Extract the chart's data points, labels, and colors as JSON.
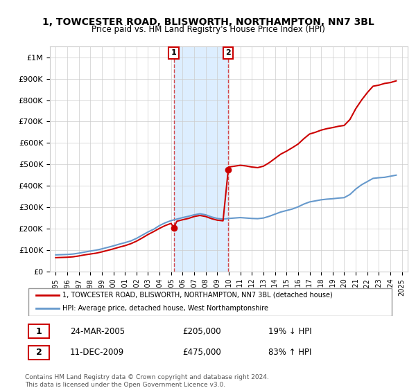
{
  "title": "1, TOWCESTER ROAD, BLISWORTH, NORTHAMPTON, NN7 3BL",
  "subtitle": "Price paid vs. HM Land Registry's House Price Index (HPI)",
  "legend_line1": "1, TOWCESTER ROAD, BLISWORTH, NORTHAMPTON, NN7 3BL (detached house)",
  "legend_line2": "HPI: Average price, detached house, West Northamptonshire",
  "footer": "Contains HM Land Registry data © Crown copyright and database right 2024.\nThis data is licensed under the Open Government Licence v3.0.",
  "sale1_label": "1",
  "sale1_date": "24-MAR-2005",
  "sale1_price": "£205,000",
  "sale1_hpi": "19% ↓ HPI",
  "sale2_label": "2",
  "sale2_date": "11-DEC-2009",
  "sale2_price": "£475,000",
  "sale2_hpi": "83% ↑ HPI",
  "red_color": "#cc0000",
  "blue_color": "#6699cc",
  "highlight_color": "#ddeeff",
  "sale1_x": 2005.23,
  "sale2_x": 2009.95,
  "sale1_y": 205000,
  "sale2_y": 475000,
  "ylim_max": 1050000,
  "xlim_min": 1994.5,
  "xlim_max": 2025.5,
  "yticks": [
    0,
    100000,
    200000,
    300000,
    400000,
    500000,
    600000,
    700000,
    800000,
    900000,
    1000000
  ],
  "ytick_labels": [
    "£0",
    "£100K",
    "£200K",
    "£300K",
    "£400K",
    "£500K",
    "£600K",
    "£700K",
    "£800K",
    "£900K",
    "£1M"
  ]
}
